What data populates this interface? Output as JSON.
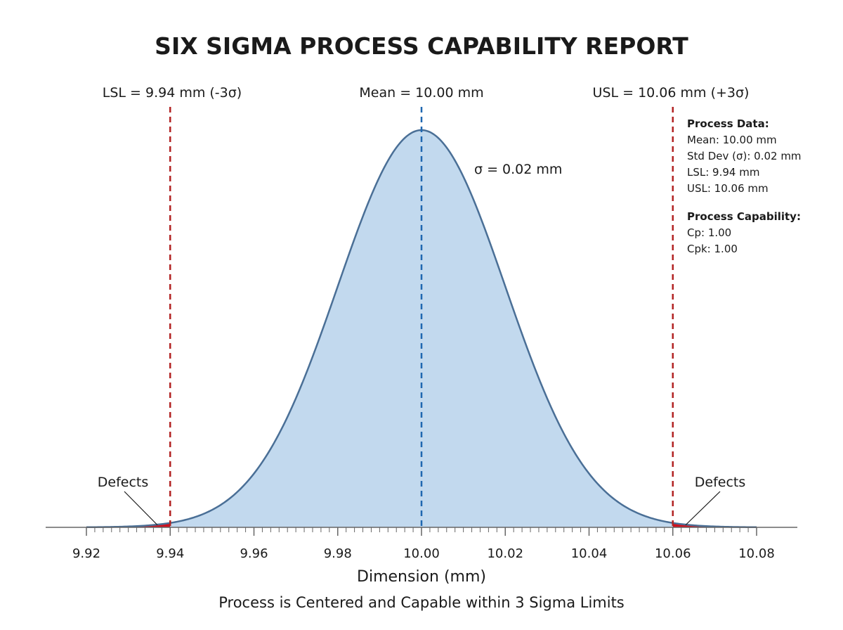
{
  "title": "SIX SIGMA PROCESS CAPABILITY REPORT",
  "annotations": {
    "lsl_label": "LSL = 9.94 mm (-3σ)",
    "mean_label": "Mean = 10.00 mm",
    "usl_label": "USL = 10.06 mm (+3σ)",
    "sigma_label": "σ = 0.02 mm",
    "defects_left": "Defects",
    "defects_right": "Defects"
  },
  "info_panel": {
    "process_data_heading": "Process Data:",
    "process_data_lines": [
      "Mean: 10.00 mm",
      "Std Dev (σ): 0.02 mm",
      "LSL: 9.94 mm",
      "USL: 10.06 mm"
    ],
    "capability_heading": "Process Capability:",
    "capability_lines": [
      "Cp: 1.00",
      "Cpk: 1.00"
    ]
  },
  "xlabel": "Dimension (mm)",
  "caption": "Process is Centered and Capable within 3 Sigma Limits",
  "colors": {
    "curve_fill": "#c2d9ee",
    "curve_stroke": "#4a6f96",
    "mean_line": "#1f67b0",
    "spec_line": "#b22222",
    "defect_fill": "#d0101e",
    "axis": "#666666"
  },
  "chart_data": {
    "type": "area",
    "distribution": "normal",
    "mean": 10.0,
    "sigma": 0.02,
    "lsl": 9.94,
    "usl": 10.06,
    "xlim": [
      9.92,
      10.08
    ],
    "xticks": [
      "9.92",
      "9.94",
      "9.96",
      "9.98",
      "10.00",
      "10.02",
      "10.04",
      "10.06",
      "10.08"
    ],
    "minor_tick_step": 0.002,
    "xlabel": "Dimension (mm)",
    "title": "SIX SIGMA PROCESS CAPABILITY REPORT",
    "grid": false,
    "legend": false
  }
}
